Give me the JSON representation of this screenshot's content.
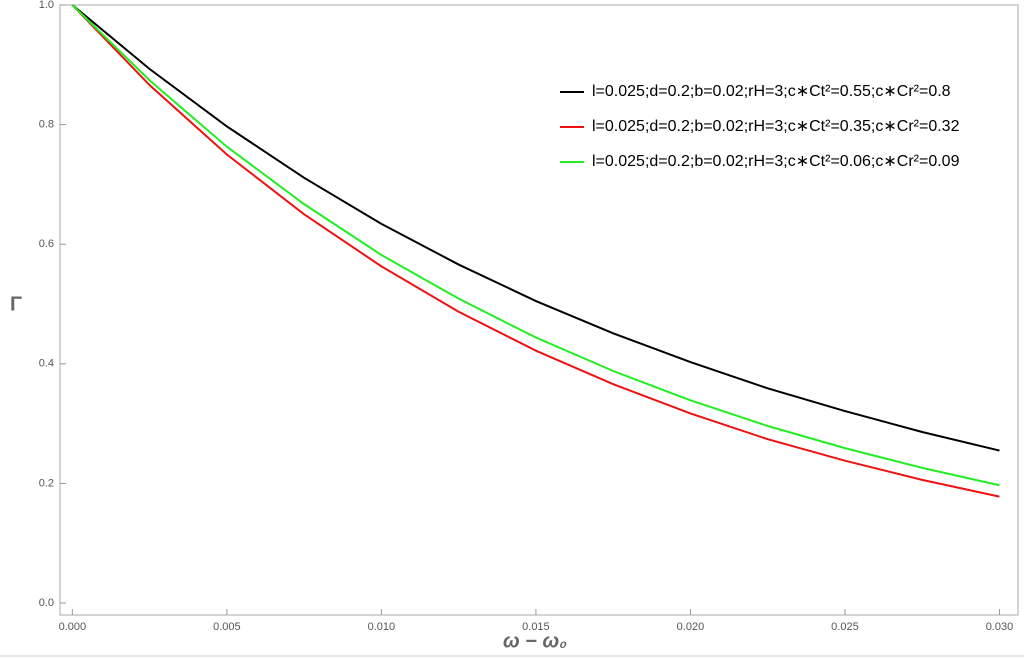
{
  "chart_data": {
    "type": "line",
    "x_label": "ω − ω₀",
    "y_label": "Γ",
    "x": [
      0,
      0.0025,
      0.005,
      0.0075,
      0.01,
      0.0125,
      0.015,
      0.0175,
      0.02,
      0.0225,
      0.025,
      0.0275,
      0.03
    ],
    "series": [
      {
        "name": "l=0.025;d=0.2;b=0.02;rH=3;c∗Ct²=0.55;c∗Cr²=0.8",
        "color": "#000000",
        "values": [
          1,
          0.893,
          0.797,
          0.711,
          0.634,
          0.566,
          0.505,
          0.451,
          0.403,
          0.359,
          0.321,
          0.286,
          0.255
        ]
      },
      {
        "name": "l=0.025;d=0.2;b=0.02;rH=3;c∗Ct²=0.35;c∗Cr²=0.32",
        "color": "#ee1111",
        "values": [
          1,
          0.866,
          0.75,
          0.65,
          0.563,
          0.487,
          0.422,
          0.366,
          0.317,
          0.274,
          0.238,
          0.206,
          0.178
        ]
      },
      {
        "name": "l=0.025;d=0.2;b=0.02;rH=3;c∗Ct²=0.06;c∗Cr²=0.09",
        "color": "#22ee22",
        "values": [
          1,
          0.874,
          0.763,
          0.667,
          0.582,
          0.509,
          0.444,
          0.388,
          0.339,
          0.296,
          0.259,
          0.226,
          0.197
        ]
      }
    ],
    "xlim": [
      -0.0004,
      0.0306
    ],
    "ylim": [
      -0.02,
      1.0
    ],
    "xticks": [
      {
        "value": 0,
        "label": "0.000"
      },
      {
        "value": 0.005,
        "label": "0.005"
      },
      {
        "value": 0.01,
        "label": "0.010"
      },
      {
        "value": 0.015,
        "label": "0.015"
      },
      {
        "value": 0.02,
        "label": "0.020"
      },
      {
        "value": 0.025,
        "label": "0.025"
      },
      {
        "value": 0.03,
        "label": "0.030"
      }
    ],
    "yticks": [
      {
        "value": 0,
        "label": "0.0"
      },
      0.2,
      0.4,
      0.6,
      0.8,
      {
        "value": 1,
        "label": "1.0"
      }
    ],
    "legend": "upper right"
  }
}
